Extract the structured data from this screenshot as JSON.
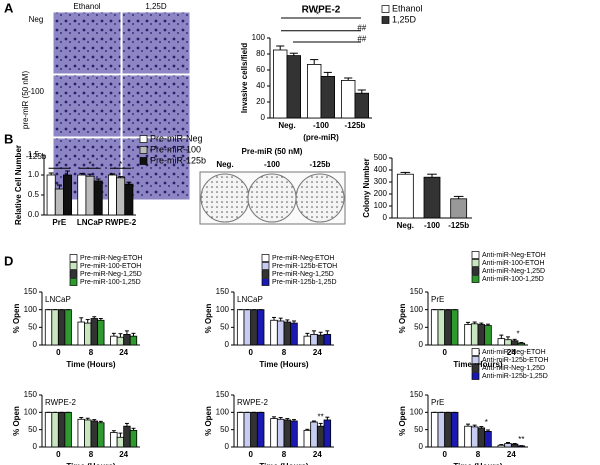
{
  "panels": [
    "A",
    "B",
    "C",
    "D"
  ],
  "panel_a": {
    "columns": [
      "Ethanol",
      "1,25D"
    ],
    "rows": [
      "Neg",
      "-100",
      "-125b"
    ],
    "side_label": "pre-miR (50 nM)"
  },
  "panel_c": {
    "header": "Pre-miR (50 nM)",
    "plates": [
      "Neg.",
      "-100",
      "-125b"
    ]
  },
  "chart_data": [
    {
      "type": "bar",
      "title": "RWPE-2",
      "ylabel": "Invasive cells/field",
      "xlabel": "(pre-miR)",
      "categories": [
        "Neg.",
        "-100",
        "-125b"
      ],
      "ylim": [
        0,
        100
      ],
      "yticks": [
        0,
        20,
        40,
        60,
        80,
        100
      ],
      "legend": true,
      "series": [
        {
          "name": "Ethanol",
          "color": "#ffffff",
          "values": [
            85,
            67,
            47
          ],
          "errors": [
            5,
            6,
            3
          ]
        },
        {
          "name": "1,25D",
          "color": "#333333",
          "values": [
            78,
            52,
            31
          ],
          "errors": [
            3,
            5,
            4
          ]
        }
      ],
      "annotations": [
        "*",
        "##",
        "##"
      ]
    },
    {
      "type": "bar",
      "ylabel": "Relative Cell Number",
      "categories": [
        "PrE",
        "LNCaP",
        "RWPE-2"
      ],
      "ylim": [
        0,
        1.5
      ],
      "yticks": [
        {
          "value": 0,
          "label": "0.0"
        },
        0.5,
        {
          "value": 1,
          "label": "1.0"
        },
        1.5
      ],
      "legend": true,
      "series": [
        {
          "name": "Pre-miR-Neg",
          "color": "#ffffff",
          "values": [
            1.0,
            1.0,
            1.0
          ],
          "errors": [
            0.05,
            0.04,
            0.03
          ]
        },
        {
          "name": "Pre-miR-100",
          "color": "#bbbbbb",
          "values": [
            0.65,
            0.97,
            0.93
          ],
          "errors": [
            0.1,
            0.05,
            0.03
          ]
        },
        {
          "name": "Pre-miR-125b",
          "color": "#111111",
          "values": [
            1.0,
            0.85,
            0.77
          ],
          "errors": [
            0.1,
            0.05,
            0.05
          ]
        }
      ],
      "annotations": [
        "*",
        "*",
        "*"
      ]
    },
    {
      "type": "bar",
      "ylabel": "Colony Number",
      "categories": [
        "Neg.",
        "-100",
        "-125b"
      ],
      "ylim": [
        0,
        500
      ],
      "yticks": [
        0,
        100,
        200,
        300,
        400,
        500
      ],
      "legend": false,
      "values": [
        365,
        340,
        160
      ],
      "errors": [
        15,
        25,
        20
      ],
      "colors": [
        "#ffffff",
        "#333333",
        "#999999"
      ]
    },
    {
      "type": "bar",
      "label": "LNCaP",
      "ylabel": "% Open",
      "xlabel": "Time (Hours)",
      "categories": [
        "0",
        "8",
        "24"
      ],
      "ylim": [
        0,
        150
      ],
      "yticks": [
        0,
        50,
        100,
        150
      ],
      "legend": true,
      "series": [
        {
          "name": "Pre-miR-Neg-ETOH",
          "color": "#ffffff",
          "values": [
            100,
            65,
            25
          ],
          "errors": [
            0,
            12,
            8
          ]
        },
        {
          "name": "Pre-miR-100-ETOH",
          "color": "#c8e6c0",
          "values": [
            100,
            62,
            22
          ],
          "errors": [
            0,
            10,
            10
          ]
        },
        {
          "name": "Pre-miR-Neg-1,25D",
          "color": "#333333",
          "values": [
            100,
            75,
            30
          ],
          "errors": [
            0,
            5,
            10
          ]
        },
        {
          "name": "Pre-miR-100-1,25D",
          "color": "#2e9a2e",
          "values": [
            100,
            70,
            25
          ],
          "errors": [
            0,
            5,
            8
          ]
        }
      ]
    },
    {
      "type": "bar",
      "label": "LNCaP",
      "ylabel": "% Open",
      "xlabel": "Time (Hours)",
      "categories": [
        "0",
        "8",
        "24"
      ],
      "ylim": [
        0,
        150
      ],
      "yticks": [
        0,
        50,
        100,
        150
      ],
      "legend": true,
      "series": [
        {
          "name": "Pre-miR-Neg-ETOH",
          "color": "#ffffff",
          "values": [
            100,
            70,
            25
          ],
          "errors": [
            0,
            8,
            8
          ]
        },
        {
          "name": "Pre-miR-125b-ETOH",
          "color": "#c8ccf0",
          "values": [
            100,
            68,
            30
          ],
          "errors": [
            0,
            8,
            10
          ]
        },
        {
          "name": "Pre-miR-Neg-1,25D",
          "color": "#333333",
          "values": [
            100,
            65,
            28
          ],
          "errors": [
            0,
            6,
            8
          ]
        },
        {
          "name": "Pre-miR-125b-1,25D",
          "color": "#1a1ab0",
          "values": [
            100,
            62,
            30
          ],
          "errors": [
            0,
            6,
            10
          ]
        }
      ]
    },
    {
      "type": "bar",
      "label": "PrE",
      "ylabel": "% Open",
      "xlabel": "Time (Hours)",
      "categories": [
        "0",
        "8",
        "24"
      ],
      "ylim": [
        0,
        150
      ],
      "yticks": [
        0,
        50,
        100,
        150
      ],
      "legend": true,
      "series": [
        {
          "name": "Anti-miR-Neg-ETOH",
          "color": "#ffffff",
          "values": [
            100,
            58,
            18
          ],
          "errors": [
            0,
            6,
            10
          ]
        },
        {
          "name": "Anti-miR-100-ETOH",
          "color": "#c8e6c0",
          "values": [
            100,
            60,
            15
          ],
          "errors": [
            0,
            5,
            8
          ]
        },
        {
          "name": "Anti-miR-Neg-1,25D",
          "color": "#333333",
          "values": [
            100,
            58,
            12
          ],
          "errors": [
            0,
            4,
            4
          ]
        },
        {
          "name": "Anti-miR-100-1,25D",
          "color": "#2e9a2e",
          "values": [
            100,
            55,
            5
          ],
          "errors": [
            0,
            4,
            2
          ]
        }
      ],
      "annotations": [
        "*"
      ]
    },
    {
      "type": "bar",
      "label": "RWPE-2",
      "ylabel": "% Open",
      "xlabel": "Time (Hours)",
      "categories": [
        "0",
        "8",
        "24"
      ],
      "ylim": [
        0,
        150
      ],
      "yticks": [
        0,
        50,
        100,
        150
      ],
      "legend": false,
      "series": [
        {
          "name": "Pre-miR-Neg-ETOH",
          "color": "#ffffff",
          "values": [
            100,
            80,
            42
          ],
          "errors": [
            0,
            5,
            5
          ]
        },
        {
          "name": "Pre-miR-100-ETOH",
          "color": "#c8e6c0",
          "values": [
            100,
            78,
            28
          ],
          "errors": [
            0,
            5,
            12
          ]
        },
        {
          "name": "Pre-miR-Neg-1,25D",
          "color": "#333333",
          "values": [
            100,
            75,
            60
          ],
          "errors": [
            0,
            4,
            8
          ]
        },
        {
          "name": "Pre-miR-100-1,25D",
          "color": "#2e9a2e",
          "values": [
            100,
            70,
            48
          ],
          "errors": [
            0,
            4,
            6
          ]
        }
      ]
    },
    {
      "type": "bar",
      "label": "RWPE-2",
      "ylabel": "% Open",
      "xlabel": "Time (Hours)",
      "categories": [
        "0",
        "8",
        "24"
      ],
      "ylim": [
        0,
        150
      ],
      "yticks": [
        0,
        50,
        100,
        150
      ],
      "legend": false,
      "series": [
        {
          "name": "Pre-miR-Neg-ETOH",
          "color": "#ffffff",
          "values": [
            100,
            82,
            48
          ],
          "errors": [
            0,
            5,
            3
          ]
        },
        {
          "name": "Pre-miR-125b-ETOH",
          "color": "#c8ccf0",
          "values": [
            100,
            80,
            72
          ],
          "errors": [
            0,
            5,
            3
          ]
        },
        {
          "name": "Pre-miR-Neg-1,25D",
          "color": "#333333",
          "values": [
            100,
            78,
            60
          ],
          "errors": [
            0,
            4,
            8
          ]
        },
        {
          "name": "Pre-miR-125b-1,25D",
          "color": "#1a1ab0",
          "values": [
            100,
            75,
            78
          ],
          "errors": [
            0,
            4,
            8
          ]
        }
      ],
      "annotations": [
        "**"
      ]
    },
    {
      "type": "bar",
      "label": "PrE",
      "ylabel": "% Open",
      "xlabel": "Time (Hours)",
      "categories": [
        "0",
        "8",
        "24"
      ],
      "ylim": [
        0,
        150
      ],
      "yticks": [
        0,
        50,
        100,
        150
      ],
      "legend": true,
      "series": [
        {
          "name": "Anti-miR-Neg-ETOH",
          "color": "#ffffff",
          "values": [
            100,
            60,
            5
          ],
          "errors": [
            0,
            6,
            2
          ]
        },
        {
          "name": "Anti-miR-125b-ETOH",
          "color": "#c8ccf0",
          "values": [
            100,
            58,
            10
          ],
          "errors": [
            0,
            5,
            3
          ]
        },
        {
          "name": "Anti-miR-Neg-1,25D",
          "color": "#333333",
          "values": [
            100,
            55,
            8
          ],
          "errors": [
            0,
            4,
            2
          ]
        },
        {
          "name": "Anti-miR-125b-1,25D",
          "color": "#1a1ab0",
          "values": [
            100,
            45,
            3
          ],
          "errors": [
            0,
            4,
            1
          ]
        }
      ],
      "annotations": [
        "*",
        "**"
      ]
    }
  ]
}
